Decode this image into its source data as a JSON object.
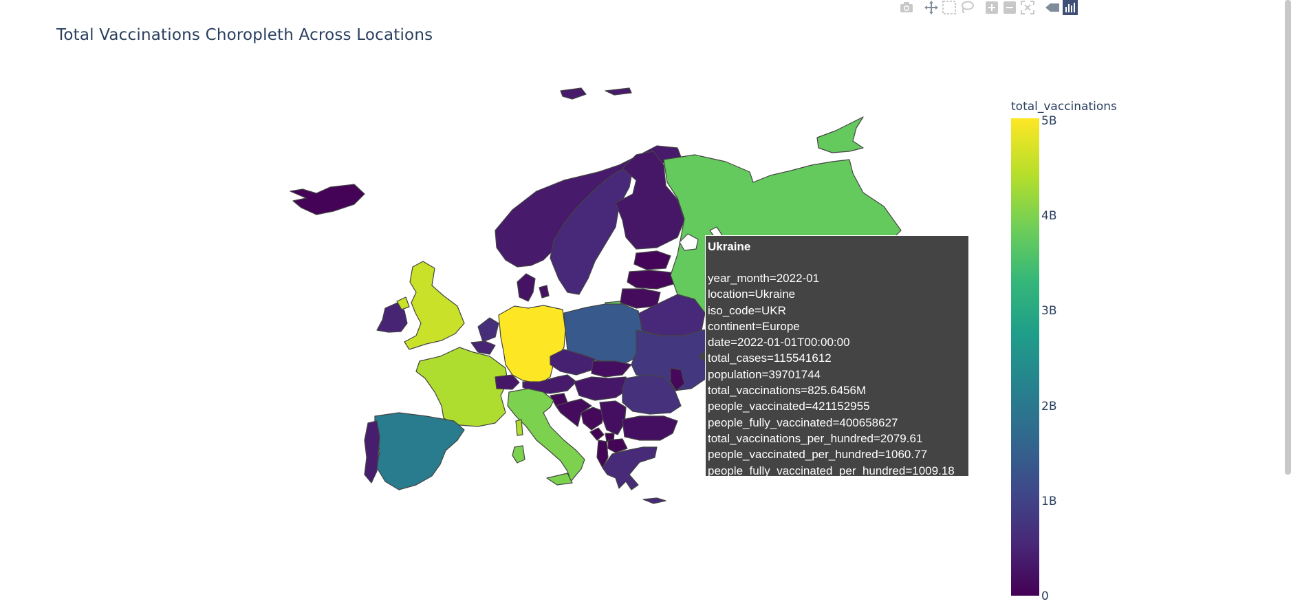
{
  "title": "Total Vaccinations Choropleth Across Locations",
  "modebar": [
    {
      "icon": "camera-icon"
    },
    {
      "icon": "pan-icon"
    },
    {
      "icon": "box-select-icon"
    },
    {
      "icon": "lasso-icon"
    },
    {
      "icon": "zoom-in-icon"
    },
    {
      "icon": "zoom-out-icon"
    },
    {
      "icon": "reset-view-icon"
    },
    {
      "icon": "hover-label-icon"
    },
    {
      "icon": "plotly-logo-icon"
    }
  ],
  "colors": {
    "border": "#444444",
    "no_data": "#ffffff",
    "scale": [
      "#440154",
      "#482878",
      "#3e4989",
      "#31688e",
      "#26828e",
      "#1f9e89",
      "#35b779",
      "#6ece58",
      "#b5de2b",
      "#fde725"
    ]
  },
  "colorbar": {
    "title": "total_vaccinations",
    "ticks": [
      "0",
      "1B",
      "2B",
      "3B",
      "4B",
      "5B"
    ],
    "tick_values": [
      0,
      1000000000,
      2000000000,
      3000000000,
      4000000000,
      5000000000
    ],
    "range": [
      0,
      5000000000
    ]
  },
  "hover": {
    "name": "Ukraine",
    "lines": [
      "year_month=2022-01",
      "location=Ukraine",
      "iso_code=UKR",
      "continent=Europe",
      "date=2022-01-01T00:00:00",
      "total_cases=115541612",
      "population=39701744",
      "total_vaccinations=825.6456M",
      "people_vaccinated=421152955",
      "people_fully_vaccinated=400658627",
      "total_vaccinations_per_hundred=2079.61",
      "people_vaccinated_per_hundred=1060.77",
      "people_fully_vaccinated_per_hundred=1009.18"
    ]
  },
  "chart_data": {
    "type": "choropleth",
    "value_field": "total_vaccinations",
    "scope": "Europe",
    "colorscale": "Viridis",
    "zmin": 0,
    "zmax": 5000000000,
    "regions": [
      {
        "id": "DEU",
        "value": 5000000000
      },
      {
        "id": "GBR",
        "value": 4600000000
      },
      {
        "id": "FRA",
        "value": 4400000000
      },
      {
        "id": "ITA",
        "value": 4000000000
      },
      {
        "id": "RUS",
        "value": 3800000000
      },
      {
        "id": "ESP",
        "value": 2100000000
      },
      {
        "id": "POL",
        "value": 1400000000
      },
      {
        "id": "UKR",
        "value": 825645600
      },
      {
        "id": "ROU",
        "value": 700000000
      },
      {
        "id": "BLR",
        "value": 550000000
      },
      {
        "id": "NLD",
        "value": 650000000
      },
      {
        "id": "SWE",
        "value": 550000000
      },
      {
        "id": "CZE",
        "value": 450000000
      },
      {
        "id": "GRC",
        "value": 600000000
      },
      {
        "id": "NOR",
        "value": 350000000
      },
      {
        "id": "FIN",
        "value": 300000000
      },
      {
        "id": "IRL",
        "value": 500000000
      },
      {
        "id": "PRT",
        "value": 400000000
      },
      {
        "id": "AUT",
        "value": 350000000
      },
      {
        "id": "HUN",
        "value": 320000000
      },
      {
        "id": "BEL",
        "value": 500000000
      },
      {
        "id": "CHE",
        "value": 300000000
      },
      {
        "id": "BGR",
        "value": 200000000
      },
      {
        "id": "SRB",
        "value": 200000000
      },
      {
        "id": "DNK",
        "value": 250000000
      },
      {
        "id": "SVK",
        "value": 180000000
      },
      {
        "id": "HRV",
        "value": 150000000
      },
      {
        "id": "BIH",
        "value": 100000000
      },
      {
        "id": "LTU",
        "value": 150000000
      },
      {
        "id": "LVA",
        "value": 90000000
      },
      {
        "id": "EST",
        "value": 70000000
      },
      {
        "id": "ISL",
        "value": 30000000
      },
      {
        "id": "MDA",
        "value": 100000000
      },
      {
        "id": "ALB",
        "value": 50000000
      },
      {
        "id": "MKD",
        "value": 50000000
      },
      {
        "id": "MNE",
        "value": 20000000
      },
      {
        "id": "SVN",
        "value": 80000000
      },
      {
        "id": "KOS",
        "value": 20000000
      }
    ]
  }
}
